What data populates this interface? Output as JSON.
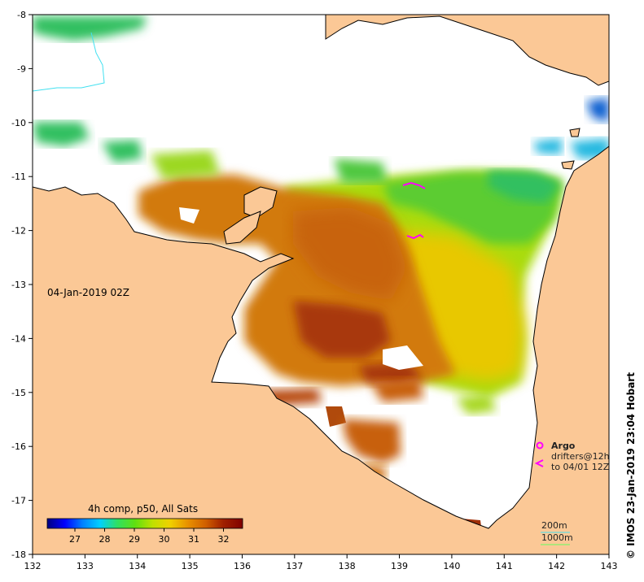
{
  "map": {
    "timestamp": "04-Jan-2019 02Z",
    "x_ticks": [
      "132",
      "133",
      "134",
      "135",
      "136",
      "137",
      "138",
      "139",
      "140",
      "141",
      "142",
      "143"
    ],
    "y_ticks": [
      "-8",
      "-9",
      "-10",
      "-11",
      "-12",
      "-13",
      "-14",
      "-15",
      "-16",
      "-17",
      "-18"
    ],
    "lon_range": [
      132,
      143
    ],
    "lat_range": [
      -18,
      -8
    ]
  },
  "colorbar": {
    "title": "4h comp, p50, All Sats",
    "tick_labels": [
      "27",
      "28",
      "29",
      "30",
      "31",
      "32"
    ],
    "colors": [
      "#00007f",
      "#0000ff",
      "#0080ff",
      "#00d0ff",
      "#30e060",
      "#60e010",
      "#c0e000",
      "#f0d000",
      "#e89000",
      "#d06000",
      "#a02000",
      "#800000"
    ]
  },
  "legend": {
    "argo_label": "Argo",
    "drifters_label": "drifters@12h",
    "drifters_sub": "to 04/01 12Z",
    "depth_200": "200m",
    "depth_1000": "1000m",
    "argo_color": "#ff00ff"
  },
  "credit": "© IMOS 23-Jan-2019 23:04 Hobart",
  "colors": {
    "land": "#fbc896",
    "warm_core": "#a83808",
    "warm": "#d07810",
    "mid": "#e8b000",
    "cool": "#7ed818",
    "cooler": "#30c860",
    "cold": "#10a0e0"
  }
}
